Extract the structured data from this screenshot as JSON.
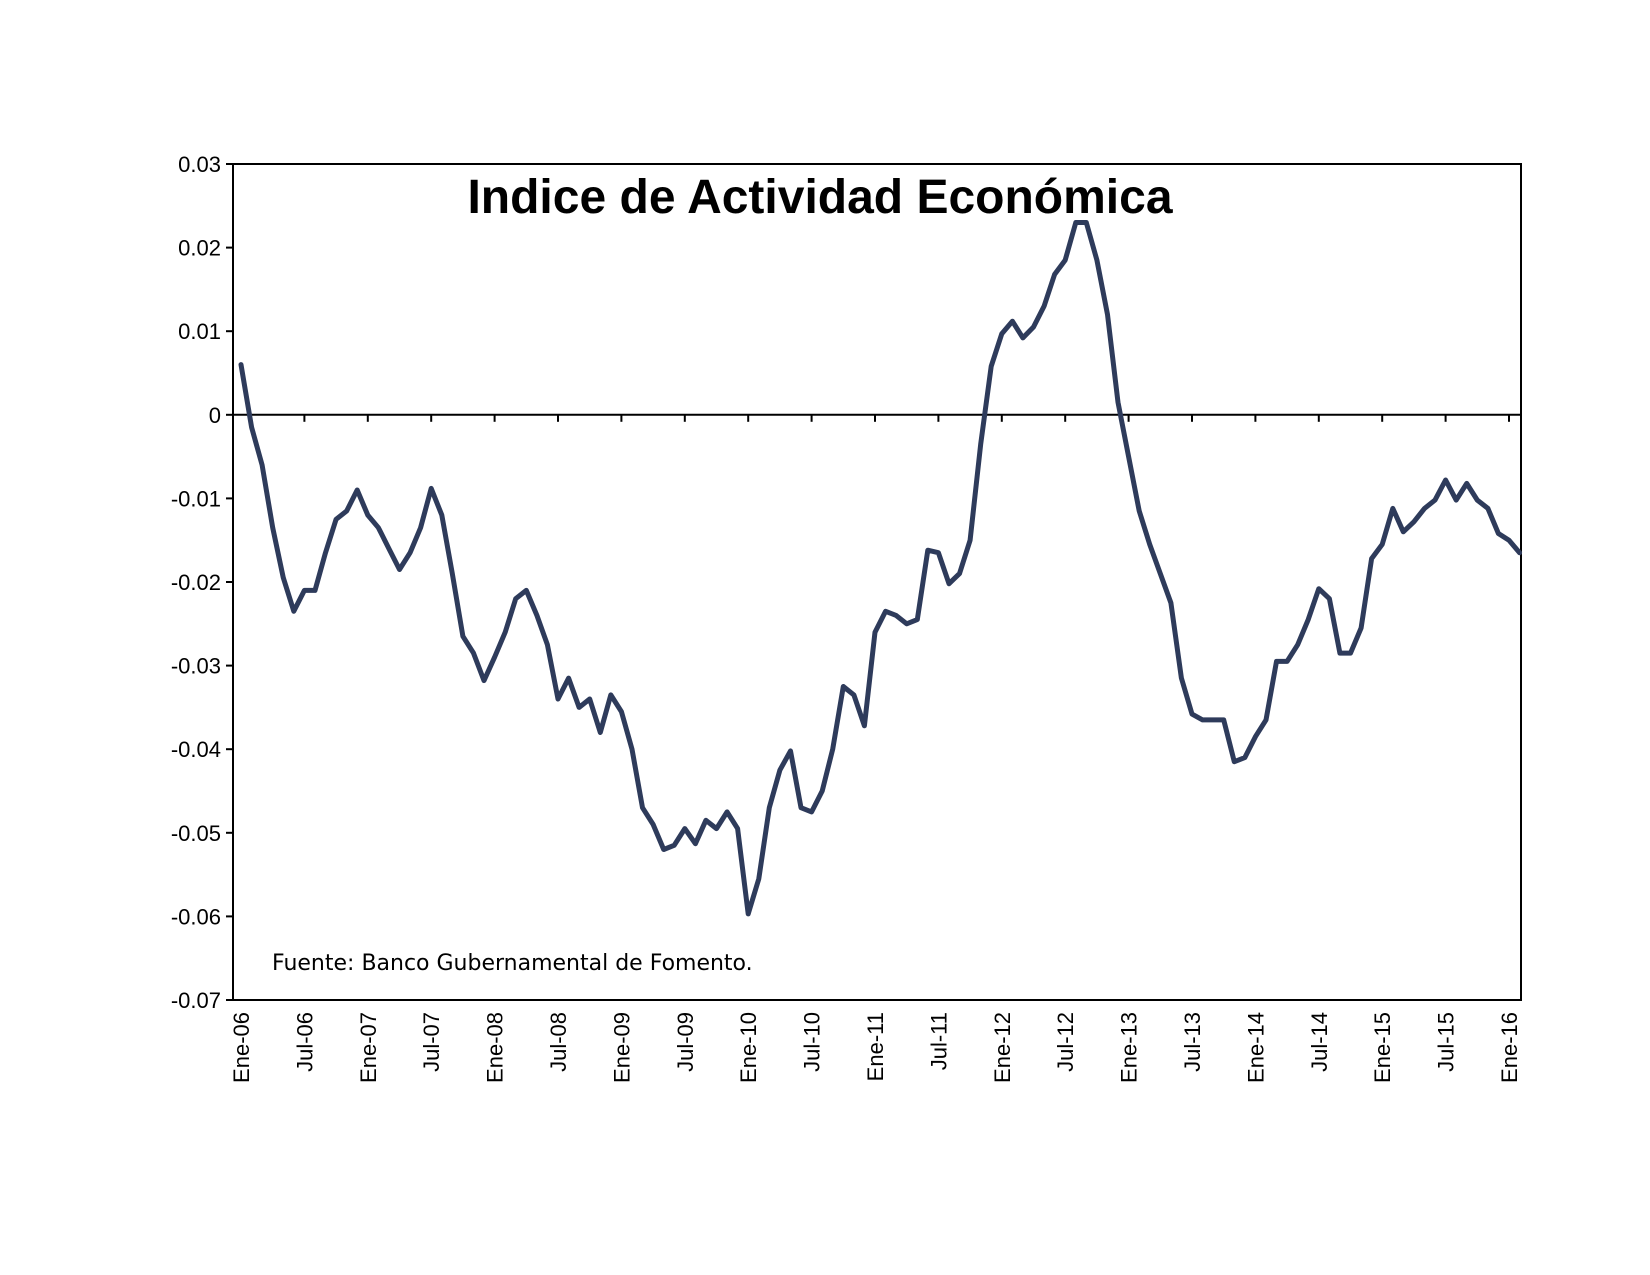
{
  "chart_data": {
    "type": "line",
    "title": "Indice de Actividad Económica",
    "annotation": "Fuente: Banco Gubernamental de Fomento.",
    "xlabel": "",
    "ylabel": "",
    "ylim": [
      -0.07,
      0.03
    ],
    "y_ticks": [
      "0.03",
      "0.02",
      "0.01",
      "0",
      "-0.01",
      "-0.02",
      "-0.03",
      "-0.04",
      "-0.05",
      "-0.06",
      "-0.07"
    ],
    "x_tick_labels": [
      "Ene-06",
      "Jul-06",
      "Ene-07",
      "Jul-07",
      "Ene-08",
      "Jul-08",
      "Ene-09",
      "Jul-09",
      "Ene-10",
      "Jul-10",
      "Ene-11",
      "Jul-11",
      "Ene-12",
      "Jul-12",
      "Ene-13",
      "Jul-13",
      "Ene-14",
      "Jul-14",
      "Ene-15",
      "Jul-15",
      "Ene-16"
    ],
    "grid": false,
    "zero_line": true,
    "line_color": "#2E3B5B",
    "series": [
      {
        "values": [
          0.006,
          -0.0015,
          -0.006,
          -0.0135,
          -0.0195,
          -0.0235,
          -0.021,
          -0.021,
          -0.0165,
          -0.0125,
          -0.0115,
          -0.009,
          -0.012,
          -0.0135,
          -0.016,
          -0.0185,
          -0.0165,
          -0.0135,
          -0.0088,
          -0.012,
          -0.019,
          -0.0265,
          -0.0285,
          -0.0318,
          -0.029,
          -0.026,
          -0.022,
          -0.021,
          -0.024,
          -0.0275,
          -0.034,
          -0.0315,
          -0.035,
          -0.034,
          -0.038,
          -0.0335,
          -0.0355,
          -0.04,
          -0.047,
          -0.049,
          -0.052,
          -0.0515,
          -0.0495,
          -0.0513,
          -0.0485,
          -0.0495,
          -0.0475,
          -0.0495,
          -0.0597,
          -0.0555,
          -0.047,
          -0.0425,
          -0.0402,
          -0.047,
          -0.0475,
          -0.045,
          -0.04,
          -0.0325,
          -0.0335,
          -0.0372,
          -0.026,
          -0.0235,
          -0.024,
          -0.025,
          -0.0245,
          -0.0162,
          -0.0165,
          -0.0202,
          -0.019,
          -0.015,
          -0.0035,
          0.0058,
          0.0097,
          0.0112,
          0.0092,
          0.0105,
          0.013,
          0.0168,
          0.0185,
          0.023,
          0.023,
          0.0185,
          0.012,
          0.0015,
          -0.005,
          -0.0115,
          -0.0155,
          -0.019,
          -0.0225,
          -0.0315,
          -0.0358,
          -0.0365,
          -0.0365,
          -0.0365,
          -0.0415,
          -0.041,
          -0.0385,
          -0.0365,
          -0.0295,
          -0.0295,
          -0.0275,
          -0.0245,
          -0.0208,
          -0.022,
          -0.0285,
          -0.0285,
          -0.0255,
          -0.0172,
          -0.0155,
          -0.0112,
          -0.014,
          -0.0128,
          -0.0112,
          -0.0102,
          -0.0078,
          -0.0102,
          -0.0082,
          -0.0102,
          -0.0112,
          -0.0142,
          -0.015,
          -0.0165
        ]
      }
    ]
  }
}
